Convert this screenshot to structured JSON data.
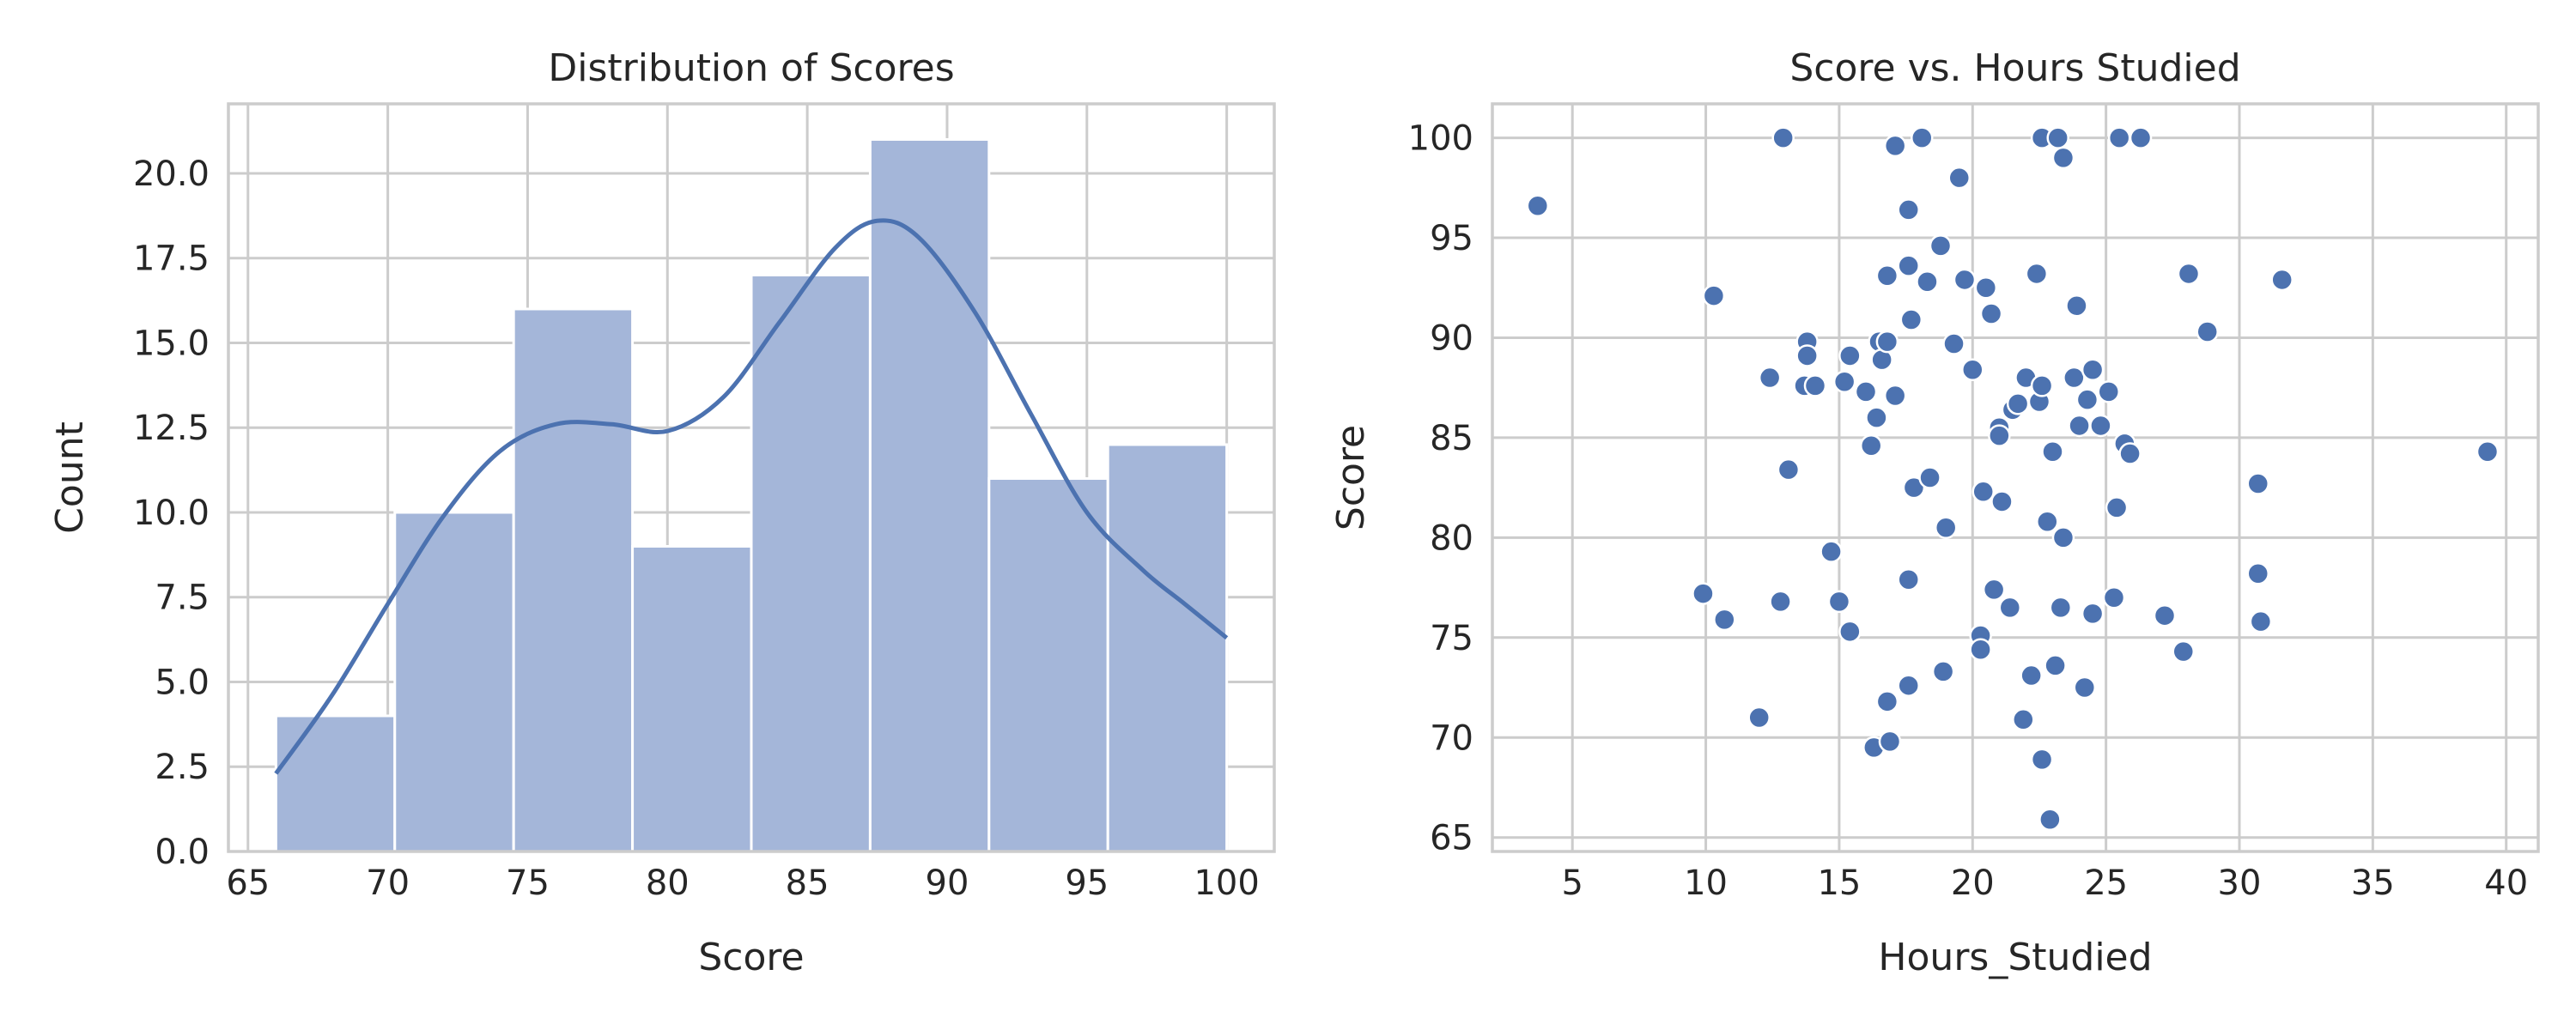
{
  "chart_data": [
    {
      "type": "bar",
      "title": "Distribution of Scores",
      "xlabel": "Score",
      "ylabel": "Count",
      "xlim": [
        64.3,
        101.7
      ],
      "ylim": [
        0,
        22.05
      ],
      "xticks": [
        65,
        70,
        75,
        80,
        85,
        90,
        95,
        100
      ],
      "yticks": [
        0,
        2.5,
        5,
        7.5,
        10,
        12.5,
        15,
        17.5,
        20
      ],
      "bins": [
        {
          "start": 66.0,
          "end": 70.25,
          "count": 4
        },
        {
          "start": 70.25,
          "end": 74.5,
          "count": 10
        },
        {
          "start": 74.5,
          "end": 78.75,
          "count": 16
        },
        {
          "start": 78.75,
          "end": 83.0,
          "count": 9
        },
        {
          "start": 83.0,
          "end": 87.25,
          "count": 17
        },
        {
          "start": 87.25,
          "end": 91.5,
          "count": 21
        },
        {
          "start": 91.5,
          "end": 95.75,
          "count": 11
        },
        {
          "start": 95.75,
          "end": 100.0,
          "count": 12
        }
      ],
      "kde": [
        [
          66,
          2.3
        ],
        [
          68,
          4.6
        ],
        [
          70,
          7.3
        ],
        [
          72,
          9.9
        ],
        [
          74,
          11.8
        ],
        [
          76,
          12.6
        ],
        [
          78,
          12.6
        ],
        [
          80,
          12.4
        ],
        [
          82,
          13.4
        ],
        [
          84,
          15.6
        ],
        [
          86,
          17.8
        ],
        [
          87.5,
          18.6
        ],
        [
          89,
          18.1
        ],
        [
          91,
          15.9
        ],
        [
          93,
          12.9
        ],
        [
          95,
          10.0
        ],
        [
          97,
          8.3
        ],
        [
          98.5,
          7.3
        ],
        [
          100,
          6.3
        ]
      ],
      "bar_color": "#a4b6d9",
      "line_color": "#4c72b0"
    },
    {
      "type": "scatter",
      "title": "Score vs. Hours Studied",
      "xlabel": "Hours_Studied",
      "ylabel": "Score",
      "xlim": [
        2.0,
        41.2
      ],
      "ylim": [
        64.3,
        101.7
      ],
      "xticks": [
        5,
        10,
        15,
        20,
        25,
        30,
        35,
        40
      ],
      "yticks": [
        65,
        70,
        75,
        80,
        85,
        90,
        95,
        100
      ],
      "point_color": "#4c72b0",
      "points": [
        [
          3.7,
          96.6
        ],
        [
          10.3,
          92.1
        ],
        [
          12.9,
          100.0
        ],
        [
          13.8,
          89.8
        ],
        [
          13.8,
          89.1
        ],
        [
          13.7,
          87.6
        ],
        [
          14.1,
          87.6
        ],
        [
          12.4,
          88.0
        ],
        [
          13.1,
          83.4
        ],
        [
          12.0,
          71.0
        ],
        [
          12.8,
          76.8
        ],
        [
          10.7,
          75.9
        ],
        [
          9.9,
          77.2
        ],
        [
          14.7,
          79.3
        ],
        [
          15.0,
          76.8
        ],
        [
          15.4,
          75.3
        ],
        [
          15.2,
          87.8
        ],
        [
          15.4,
          89.1
        ],
        [
          16.0,
          87.3
        ],
        [
          16.2,
          84.6
        ],
        [
          16.4,
          86.0
        ],
        [
          16.5,
          89.8
        ],
        [
          16.6,
          88.9
        ],
        [
          16.8,
          89.8
        ],
        [
          16.8,
          93.1
        ],
        [
          17.1,
          87.1
        ],
        [
          17.1,
          99.6
        ],
        [
          17.6,
          93.6
        ],
        [
          17.6,
          77.9
        ],
        [
          17.6,
          72.6
        ],
        [
          17.6,
          96.4
        ],
        [
          17.8,
          82.5
        ],
        [
          17.7,
          90.9
        ],
        [
          18.1,
          100.0
        ],
        [
          18.4,
          83.0
        ],
        [
          18.3,
          92.8
        ],
        [
          18.9,
          73.3
        ],
        [
          18.8,
          94.6
        ],
        [
          19.0,
          80.5
        ],
        [
          19.3,
          89.7
        ],
        [
          19.5,
          98.0
        ],
        [
          19.7,
          92.9
        ],
        [
          20.0,
          88.4
        ],
        [
          20.3,
          75.1
        ],
        [
          20.3,
          74.4
        ],
        [
          20.4,
          82.3
        ],
        [
          20.5,
          92.5
        ],
        [
          20.7,
          91.2
        ],
        [
          20.8,
          77.4
        ],
        [
          21.0,
          85.5
        ],
        [
          21.0,
          85.1
        ],
        [
          21.1,
          81.8
        ],
        [
          21.4,
          76.5
        ],
        [
          21.5,
          86.4
        ],
        [
          21.7,
          86.7
        ],
        [
          21.9,
          70.9
        ],
        [
          22.0,
          88.0
        ],
        [
          22.2,
          73.1
        ],
        [
          22.4,
          93.2
        ],
        [
          22.5,
          86.8
        ],
        [
          22.6,
          87.6
        ],
        [
          22.6,
          100.0
        ],
        [
          22.6,
          68.9
        ],
        [
          22.8,
          80.8
        ],
        [
          23.0,
          84.3
        ],
        [
          22.9,
          65.9
        ],
        [
          23.1,
          73.6
        ],
        [
          23.2,
          100.0
        ],
        [
          23.3,
          76.5
        ],
        [
          23.4,
          80.0
        ],
        [
          23.4,
          99.0
        ],
        [
          23.8,
          88.0
        ],
        [
          23.9,
          91.6
        ],
        [
          24.0,
          85.6
        ],
        [
          24.2,
          72.5
        ],
        [
          24.3,
          86.9
        ],
        [
          24.5,
          88.4
        ],
        [
          24.5,
          76.2
        ],
        [
          24.8,
          85.6
        ],
        [
          25.1,
          87.3
        ],
        [
          25.3,
          77.0
        ],
        [
          25.4,
          81.5
        ],
        [
          25.5,
          100.0
        ],
        [
          25.7,
          84.7
        ],
        [
          25.9,
          84.2
        ],
        [
          26.3,
          100.0
        ],
        [
          27.2,
          76.1
        ],
        [
          27.9,
          74.3
        ],
        [
          28.1,
          93.2
        ],
        [
          28.8,
          90.3
        ],
        [
          30.7,
          82.7
        ],
        [
          30.7,
          78.2
        ],
        [
          30.8,
          75.8
        ],
        [
          31.6,
          92.9
        ],
        [
          39.3,
          84.3
        ],
        [
          16.3,
          69.5
        ],
        [
          16.9,
          69.8
        ],
        [
          16.8,
          71.8
        ]
      ]
    }
  ]
}
